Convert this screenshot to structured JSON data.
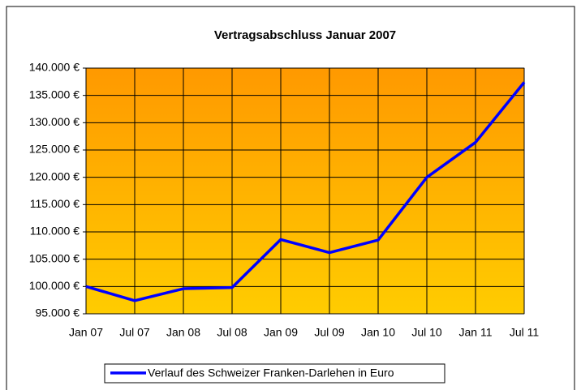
{
  "chart_data": {
    "type": "line",
    "title": "Vertragsabschluss Januar 2007",
    "categories": [
      "Jan 07",
      "Jul 07",
      "Jan 08",
      "Jul 08",
      "Jan 09",
      "Jul 09",
      "Jan 10",
      "Jul 10",
      "Jan 11",
      "Jul 11"
    ],
    "series": [
      {
        "name": "Verlauf des Schweizer Franken-Darlehen in Euro",
        "color": "#0000ff",
        "values": [
          100000,
          97400,
          99600,
          99800,
          108600,
          106200,
          108500,
          120000,
          126400,
          137400
        ]
      }
    ],
    "ylim": [
      95000,
      140000
    ],
    "yticks": [
      {
        "value": 95000,
        "label": "95.000 €"
      },
      {
        "value": 100000,
        "label": "100.000 €"
      },
      {
        "value": 105000,
        "label": "105.000 €"
      },
      {
        "value": 110000,
        "label": "110.000 €"
      },
      {
        "value": 115000,
        "label": "115.000 €"
      },
      {
        "value": 120000,
        "label": "120.000 €"
      },
      {
        "value": 125000,
        "label": "125.000 €"
      },
      {
        "value": 130000,
        "label": "130.000 €"
      },
      {
        "value": 135000,
        "label": "135.000 €"
      },
      {
        "value": 140000,
        "label": "140.000 €"
      }
    ],
    "grid": true,
    "legend": "bottom"
  }
}
